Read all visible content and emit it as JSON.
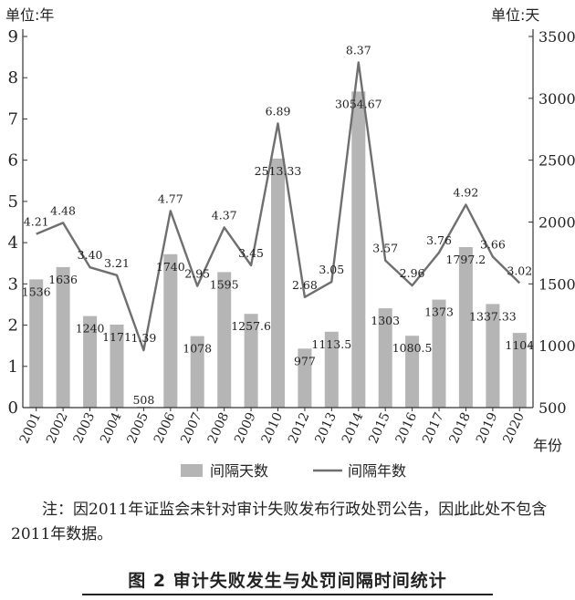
{
  "chart_data": {
    "type": "bar",
    "categories": [
      "2001",
      "2002",
      "2003",
      "2004",
      "2005",
      "2006",
      "2007",
      "2008",
      "2009",
      "2010",
      "2012",
      "2013",
      "2014",
      "2015",
      "2016",
      "2017",
      "2018",
      "2019",
      "2020"
    ],
    "series": [
      {
        "name": "间隔天数",
        "type": "bar",
        "axis": "right",
        "values": [
          1536,
          1636,
          1240,
          1171,
          508,
          1740,
          1078,
          1595,
          1257.6,
          2513.33,
          977,
          1113.5,
          3054.67,
          1303,
          1080.5,
          1373,
          1797.2,
          1337.33,
          1104
        ],
        "labels": [
          "1536",
          "1636",
          "1240",
          "1171",
          "508",
          "1740",
          "1078",
          "1595",
          "1257.6",
          "2513.33",
          "977",
          "1113.5",
          "3054.67",
          "1303",
          "1080.5",
          "1373",
          "1797.2",
          "1337.33",
          "1104"
        ],
        "color": "#b5b5b5"
      },
      {
        "name": "间隔年数",
        "type": "line",
        "axis": "left",
        "values": [
          4.21,
          4.48,
          3.4,
          3.21,
          1.39,
          4.77,
          2.95,
          4.37,
          3.45,
          6.89,
          2.68,
          3.05,
          8.37,
          3.57,
          2.96,
          3.76,
          4.92,
          3.66,
          3.02
        ],
        "labels": [
          "4.21",
          "4.48",
          "3.40",
          "3.21",
          "1.39",
          "4.77",
          "2.95",
          "4.37",
          "3.45",
          "6.89",
          "2.68",
          "3.05",
          "8.37",
          "3.57",
          "2.96",
          "3.76",
          "4.92",
          "3.66",
          "3.02"
        ],
        "color": "#6f6f6f"
      }
    ],
    "y_left": {
      "label": "单位:年",
      "range": [
        0,
        9
      ],
      "ticks": [
        "0",
        "1",
        "2",
        "3",
        "4",
        "5",
        "6",
        "7",
        "8",
        "9"
      ]
    },
    "y_right": {
      "label": "单位:天",
      "range": [
        500,
        3500
      ],
      "ticks": [
        "500",
        "1000",
        "1500",
        "2000",
        "2500",
        "3000",
        "3500"
      ]
    },
    "xlabel": "年份",
    "legend_position": "bottom",
    "grid": false
  },
  "note": "注：因2011年证监会未针对审计失败发布行政处罚公告，因此此处不包含2011年数据。",
  "caption": "图 2  审计失败发生与处罚间隔时间统计"
}
